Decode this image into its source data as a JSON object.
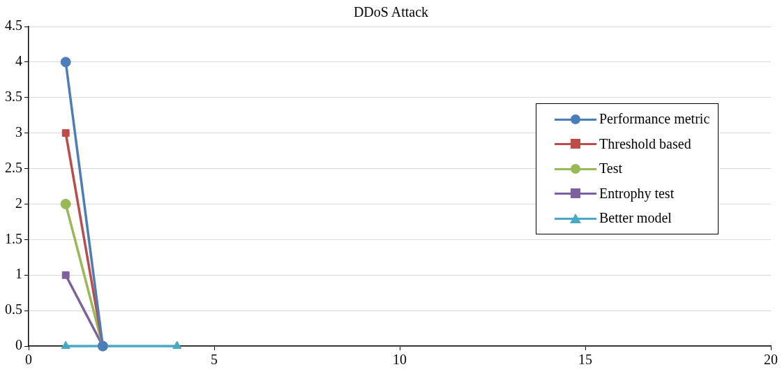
{
  "chart_data": {
    "type": "line",
    "title": "DDoS Attack",
    "series": [
      {
        "name": "Performance metric",
        "color": "#4a7ebb",
        "x": [
          1,
          2
        ],
        "values": [
          4,
          0
        ],
        "marker": "circle"
      },
      {
        "name": "Threshold based",
        "color": "#be4b48",
        "x": [
          1,
          2
        ],
        "values": [
          3,
          0
        ],
        "marker": "square"
      },
      {
        "name": "Test",
        "color": "#98b954",
        "x": [
          1,
          2
        ],
        "values": [
          2,
          0
        ],
        "marker": "circle"
      },
      {
        "name": "Entrophy test",
        "color": "#7d60a0",
        "x": [
          1,
          2
        ],
        "values": [
          1,
          0
        ],
        "marker": "square"
      },
      {
        "name": "Better model",
        "color": "#46aac5",
        "x": [
          1,
          4
        ],
        "values": [
          0,
          0
        ],
        "marker": "triangle"
      }
    ],
    "xlim": [
      0,
      20
    ],
    "xticks": [
      0,
      5,
      10,
      15,
      20
    ],
    "ylim": [
      0,
      4.5
    ],
    "yticks": [
      0,
      0.5,
      1,
      1.5,
      2,
      2.5,
      3,
      3.5,
      4,
      4.5
    ],
    "grid": "y",
    "legend": "right",
    "line_style": "solid"
  }
}
